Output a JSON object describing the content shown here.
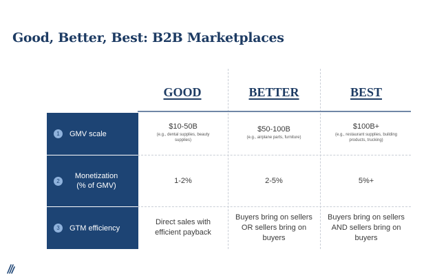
{
  "title": "Good, Better, Best: B2B Marketplaces",
  "columns": [
    "GOOD",
    "BETTER",
    "BEST"
  ],
  "rows": [
    {
      "number": "1",
      "label": "GMV scale",
      "cells": [
        {
          "main": "$10-50B",
          "sub": "(e.g., dental supplies, beauty supplies)"
        },
        {
          "main": "$50-100B",
          "sub": "(e.g., airplane parts, furniture)"
        },
        {
          "main": "$100B+",
          "sub": "(e.g., restaurant supplies, building products, trucking)"
        }
      ]
    },
    {
      "number": "2",
      "label": "Monetization (% of GMV)",
      "cells": [
        {
          "main": "1-2%"
        },
        {
          "main": "2-5%"
        },
        {
          "main": "5%+"
        }
      ]
    },
    {
      "number": "3",
      "label": "GTM efficiency",
      "cells": [
        {
          "main": "Direct sales with efficient payback"
        },
        {
          "main": "Buyers bring on sellers OR sellers bring on buyers"
        },
        {
          "main": "Buyers bring on sellers AND sellers bring on buyers"
        }
      ]
    }
  ],
  "colors": {
    "navy": "#1d4474",
    "title": "#1d3b63",
    "badge": "#8fb2dc"
  },
  "logo_icon": "company-logo-icon"
}
